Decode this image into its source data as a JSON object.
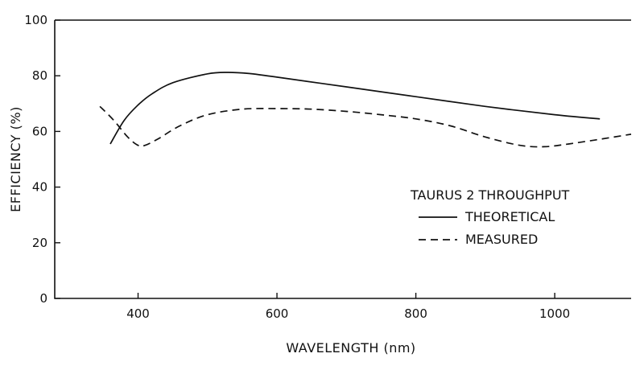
{
  "chart_data": {
    "type": "line",
    "title": "",
    "xlabel": "WAVELENGTH (nm)",
    "ylabel": "EFFICIENCY (%)",
    "xlim": [
      280,
      1110
    ],
    "ylim": [
      0,
      100
    ],
    "xticks": [
      400,
      600,
      800,
      1000
    ],
    "yticks": [
      0,
      20,
      40,
      60,
      80,
      100
    ],
    "grid": false,
    "legend": {
      "title": "TAURUS 2 THROUGHPUT",
      "placement": "bottom-right"
    },
    "series": [
      {
        "name": "THEORETICAL",
        "style": "solid",
        "x": [
          360,
          380,
          400,
          420,
          450,
          500,
          530,
          560,
          600,
          700,
          800,
          900,
          1000,
          1065
        ],
        "y": [
          55.5,
          64,
          69.5,
          73.5,
          77.5,
          80.7,
          81.2,
          80.8,
          79.5,
          76,
          72.5,
          69,
          66,
          64.5
        ]
      },
      {
        "name": "MEASURED",
        "style": "dashed",
        "x": [
          345,
          365,
          385,
          400,
          410,
          430,
          460,
          500,
          550,
          600,
          650,
          700,
          750,
          800,
          850,
          900,
          950,
          985,
          1020,
          1060,
          1110
        ],
        "y": [
          69,
          64,
          58,
          55,
          55,
          57.5,
          62,
          66,
          68,
          68.2,
          68,
          67.2,
          66,
          64.5,
          62,
          58,
          55,
          54.5,
          55.5,
          57,
          59
        ]
      }
    ]
  }
}
